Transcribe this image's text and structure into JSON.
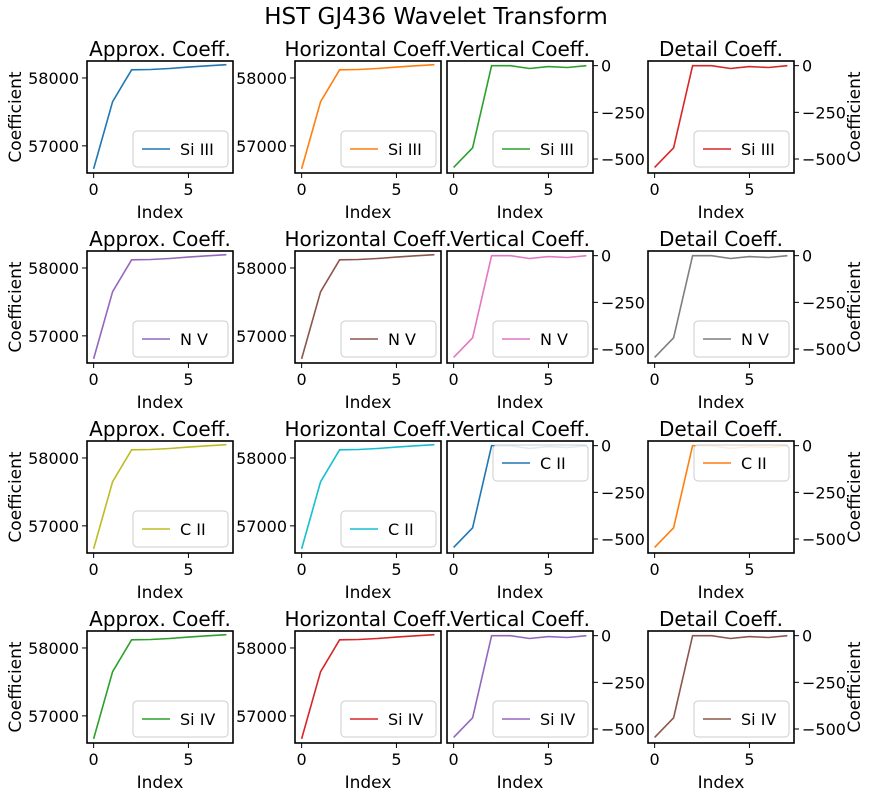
{
  "figure": {
    "title": "HST GJ436 Wavelet Transform"
  },
  "chart_data": [
    {
      "type": "line",
      "title": "Approx. Coeff.",
      "xlabel": "Index",
      "ylabel": "Coefficient",
      "x": [
        0,
        1,
        2,
        3,
        4,
        5,
        6,
        7
      ],
      "xticks": [
        0,
        5
      ],
      "yticks": [
        57000,
        58000
      ],
      "ylim": [
        56600,
        58250
      ],
      "xlim": [
        -0.35,
        7.35
      ],
      "legend_position": "lower-right",
      "series": [
        {
          "name": "Si III",
          "color": "#1f77b4",
          "values": [
            56660,
            57650,
            58120,
            58125,
            58140,
            58160,
            58180,
            58195
          ]
        }
      ]
    },
    {
      "type": "line",
      "title": "Horizontal Coeff.",
      "xlabel": "Index",
      "ylabel": "",
      "x": [
        0,
        1,
        2,
        3,
        4,
        5,
        6,
        7
      ],
      "xticks": [
        0,
        5
      ],
      "yticks": [
        57000,
        58000
      ],
      "ylim": [
        56600,
        58250
      ],
      "xlim": [
        -0.35,
        7.35
      ],
      "legend_position": "lower-right",
      "series": [
        {
          "name": "Si III",
          "color": "#ff7f0e",
          "values": [
            56660,
            57650,
            58120,
            58125,
            58140,
            58160,
            58180,
            58195
          ]
        }
      ]
    },
    {
      "type": "line",
      "title": "Vertical Coeff.",
      "xlabel": "Index",
      "ylabel": "",
      "x": [
        0,
        1,
        2,
        3,
        4,
        5,
        6,
        7
      ],
      "xticks": [
        0,
        5
      ],
      "yticks": [
        0,
        -250,
        -500
      ],
      "ylim": [
        -575,
        25
      ],
      "xlim": [
        -0.35,
        7.35
      ],
      "legend_position": "lower-right",
      "series": [
        {
          "name": "Si III",
          "color": "#2ca02c",
          "values": [
            -545,
            -440,
            0,
            0,
            -15,
            -5,
            -10,
            0
          ]
        }
      ]
    },
    {
      "type": "line",
      "title": "Detail Coeff.",
      "xlabel": "Index",
      "ylabel": "Coefficient",
      "x": [
        0,
        1,
        2,
        3,
        4,
        5,
        6,
        7
      ],
      "xticks": [
        0,
        5
      ],
      "yticks": [
        0,
        -250,
        -500
      ],
      "ylim": [
        -575,
        25
      ],
      "xlim": [
        -0.35,
        7.35
      ],
      "legend_position": "lower-right",
      "series": [
        {
          "name": "Si III",
          "color": "#d62728",
          "values": [
            -545,
            -440,
            0,
            0,
            -15,
            -5,
            -10,
            0
          ]
        }
      ]
    },
    {
      "type": "line",
      "title": "Approx. Coeff.",
      "xlabel": "Index",
      "ylabel": "Coefficient",
      "x": [
        0,
        1,
        2,
        3,
        4,
        5,
        6,
        7
      ],
      "xticks": [
        0,
        5
      ],
      "yticks": [
        57000,
        58000
      ],
      "ylim": [
        56600,
        58250
      ],
      "xlim": [
        -0.35,
        7.35
      ],
      "legend_position": "lower-right",
      "series": [
        {
          "name": "N V",
          "color": "#9467bd",
          "values": [
            56660,
            57650,
            58120,
            58125,
            58140,
            58160,
            58180,
            58195
          ]
        }
      ]
    },
    {
      "type": "line",
      "title": "Horizontal Coeff.",
      "xlabel": "Index",
      "ylabel": "",
      "x": [
        0,
        1,
        2,
        3,
        4,
        5,
        6,
        7
      ],
      "xticks": [
        0,
        5
      ],
      "yticks": [
        57000,
        58000
      ],
      "ylim": [
        56600,
        58250
      ],
      "xlim": [
        -0.35,
        7.35
      ],
      "legend_position": "lower-right",
      "series": [
        {
          "name": "N V",
          "color": "#8c564b",
          "values": [
            56660,
            57650,
            58120,
            58125,
            58140,
            58160,
            58180,
            58195
          ]
        }
      ]
    },
    {
      "type": "line",
      "title": "Vertical Coeff.",
      "xlabel": "Index",
      "ylabel": "",
      "x": [
        0,
        1,
        2,
        3,
        4,
        5,
        6,
        7
      ],
      "xticks": [
        0,
        5
      ],
      "yticks": [
        0,
        -250,
        -500
      ],
      "ylim": [
        -575,
        25
      ],
      "xlim": [
        -0.35,
        7.35
      ],
      "legend_position": "lower-right",
      "series": [
        {
          "name": "N V",
          "color": "#e377c2",
          "values": [
            -545,
            -440,
            0,
            0,
            -15,
            -5,
            -10,
            0
          ]
        }
      ]
    },
    {
      "type": "line",
      "title": "Detail Coeff.",
      "xlabel": "Index",
      "ylabel": "Coefficient",
      "x": [
        0,
        1,
        2,
        3,
        4,
        5,
        6,
        7
      ],
      "xticks": [
        0,
        5
      ],
      "yticks": [
        0,
        -250,
        -500
      ],
      "ylim": [
        -575,
        25
      ],
      "xlim": [
        -0.35,
        7.35
      ],
      "legend_position": "lower-right",
      "series": [
        {
          "name": "N V",
          "color": "#7f7f7f",
          "values": [
            -545,
            -440,
            0,
            0,
            -15,
            -5,
            -10,
            0
          ]
        }
      ]
    },
    {
      "type": "line",
      "title": "Approx. Coeff.",
      "xlabel": "Index",
      "ylabel": "Coefficient",
      "x": [
        0,
        1,
        2,
        3,
        4,
        5,
        6,
        7
      ],
      "xticks": [
        0,
        5
      ],
      "yticks": [
        57000,
        58000
      ],
      "ylim": [
        56600,
        58250
      ],
      "xlim": [
        -0.35,
        7.35
      ],
      "legend_position": "lower-right",
      "series": [
        {
          "name": "C II",
          "color": "#bcbd22",
          "values": [
            56660,
            57650,
            58120,
            58125,
            58140,
            58160,
            58180,
            58195
          ]
        }
      ]
    },
    {
      "type": "line",
      "title": "Horizontal Coeff.",
      "xlabel": "Index",
      "ylabel": "",
      "x": [
        0,
        1,
        2,
        3,
        4,
        5,
        6,
        7
      ],
      "xticks": [
        0,
        5
      ],
      "yticks": [
        57000,
        58000
      ],
      "ylim": [
        56600,
        58250
      ],
      "xlim": [
        -0.35,
        7.35
      ],
      "legend_position": "lower-right",
      "series": [
        {
          "name": "C II",
          "color": "#17becf",
          "values": [
            56660,
            57650,
            58120,
            58125,
            58140,
            58160,
            58180,
            58195
          ]
        }
      ]
    },
    {
      "type": "line",
      "title": "Vertical Coeff.",
      "xlabel": "Index",
      "ylabel": "",
      "x": [
        0,
        1,
        2,
        3,
        4,
        5,
        6,
        7
      ],
      "xticks": [
        0,
        5
      ],
      "yticks": [
        0,
        -250,
        -500
      ],
      "ylim": [
        -575,
        25
      ],
      "xlim": [
        -0.35,
        7.35
      ],
      "legend_position": "upper-right",
      "series": [
        {
          "name": "C II",
          "color": "#1f77b4",
          "values": [
            -545,
            -440,
            0,
            0,
            -15,
            -5,
            -10,
            0
          ]
        }
      ]
    },
    {
      "type": "line",
      "title": "Detail Coeff.",
      "xlabel": "Index",
      "ylabel": "Coefficient",
      "x": [
        0,
        1,
        2,
        3,
        4,
        5,
        6,
        7
      ],
      "xticks": [
        0,
        5
      ],
      "yticks": [
        0,
        -250,
        -500
      ],
      "ylim": [
        -575,
        25
      ],
      "xlim": [
        -0.35,
        7.35
      ],
      "legend_position": "upper-right",
      "series": [
        {
          "name": "C II",
          "color": "#ff7f0e",
          "values": [
            -545,
            -440,
            0,
            0,
            -15,
            -5,
            -10,
            0
          ]
        }
      ]
    },
    {
      "type": "line",
      "title": "Approx. Coeff.",
      "xlabel": "Index",
      "ylabel": "Coefficient",
      "x": [
        0,
        1,
        2,
        3,
        4,
        5,
        6,
        7
      ],
      "xticks": [
        0,
        5
      ],
      "yticks": [
        57000,
        58000
      ],
      "ylim": [
        56600,
        58250
      ],
      "xlim": [
        -0.35,
        7.35
      ],
      "legend_position": "lower-right",
      "series": [
        {
          "name": "Si IV",
          "color": "#2ca02c",
          "values": [
            56660,
            57650,
            58120,
            58125,
            58140,
            58160,
            58180,
            58195
          ]
        }
      ]
    },
    {
      "type": "line",
      "title": "Horizontal Coeff.",
      "xlabel": "Index",
      "ylabel": "",
      "x": [
        0,
        1,
        2,
        3,
        4,
        5,
        6,
        7
      ],
      "xticks": [
        0,
        5
      ],
      "yticks": [
        57000,
        58000
      ],
      "ylim": [
        56600,
        58250
      ],
      "xlim": [
        -0.35,
        7.35
      ],
      "legend_position": "lower-right",
      "series": [
        {
          "name": "Si IV",
          "color": "#d62728",
          "values": [
            56660,
            57650,
            58120,
            58125,
            58140,
            58160,
            58180,
            58195
          ]
        }
      ]
    },
    {
      "type": "line",
      "title": "Vertical Coeff.",
      "xlabel": "Index",
      "ylabel": "",
      "x": [
        0,
        1,
        2,
        3,
        4,
        5,
        6,
        7
      ],
      "xticks": [
        0,
        5
      ],
      "yticks": [
        0,
        -250,
        -500
      ],
      "ylim": [
        -575,
        25
      ],
      "xlim": [
        -0.35,
        7.35
      ],
      "legend_position": "lower-right",
      "series": [
        {
          "name": "Si IV",
          "color": "#9467bd",
          "values": [
            -545,
            -440,
            0,
            0,
            -15,
            -5,
            -10,
            0
          ]
        }
      ]
    },
    {
      "type": "line",
      "title": "Detail Coeff.",
      "xlabel": "Index",
      "ylabel": "Coefficient",
      "x": [
        0,
        1,
        2,
        3,
        4,
        5,
        6,
        7
      ],
      "xticks": [
        0,
        5
      ],
      "yticks": [
        0,
        -250,
        -500
      ],
      "ylim": [
        -575,
        25
      ],
      "xlim": [
        -0.35,
        7.35
      ],
      "legend_position": "lower-right",
      "series": [
        {
          "name": "Si IV",
          "color": "#8c564b",
          "values": [
            -545,
            -440,
            0,
            0,
            -15,
            -5,
            -10,
            0
          ]
        }
      ]
    }
  ]
}
